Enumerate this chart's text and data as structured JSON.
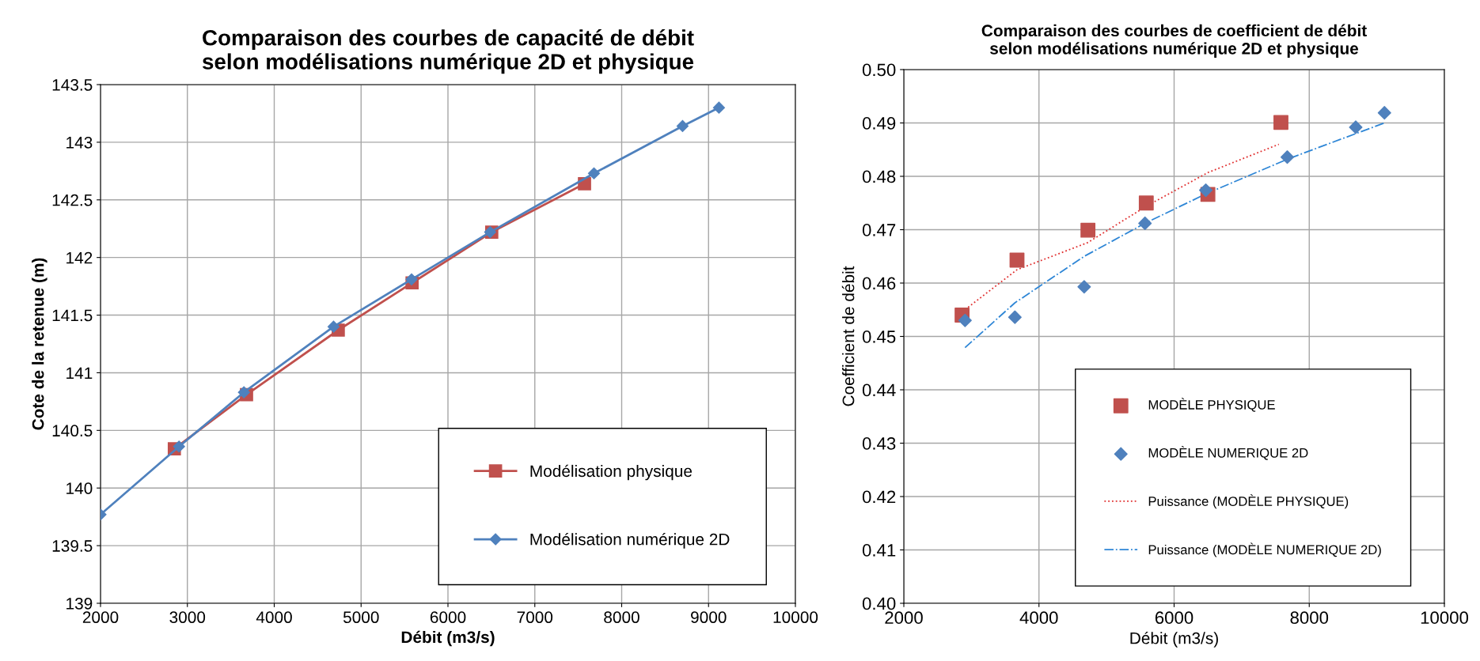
{
  "chart_data": [
    {
      "type": "line",
      "title": "Comparaison des courbes de capacité de débit\nselon modélisations numérique 2D et physique",
      "xlabel": "Débit (m3/s)",
      "ylabel": "Cote de la retenue (m)",
      "xlim": [
        2000,
        10000
      ],
      "xticks": [
        2000,
        3000,
        4000,
        5000,
        6000,
        7000,
        8000,
        9000,
        10000
      ],
      "ylim": [
        139,
        143.5
      ],
      "yticks": [
        139,
        139.5,
        140,
        140.5,
        141,
        141.5,
        142,
        142.5,
        143,
        143.5
      ],
      "grid": true,
      "legend": "bottom right",
      "series": [
        {
          "name": "Modélisation physique",
          "color": "#c0504d",
          "marker": "square",
          "x": [
            2850,
            3681,
            4737,
            5587,
            6504,
            7572
          ],
          "values": [
            140.34,
            140.81,
            141.37,
            141.78,
            142.22,
            142.64
          ]
        },
        {
          "name": "Modélisation numérique 2D",
          "color": "#4f81bd",
          "marker": "diamond",
          "x": [
            2000,
            2904,
            3651,
            4683,
            5581,
            6486,
            7681,
            8701,
            9120
          ],
          "values": [
            139.77,
            140.36,
            140.83,
            141.4,
            141.81,
            142.22,
            142.73,
            143.14,
            143.3
          ]
        }
      ]
    },
    {
      "type": "scatter",
      "title": "Comparaison des courbes de coefficient de débit\nselon modélisations numérique 2D et physique",
      "xlabel": "Débit (m3/s)",
      "ylabel": "Coefficient de débit",
      "xlim": [
        2000,
        10000
      ],
      "xticks": [
        2000,
        4000,
        6000,
        8000,
        10000
      ],
      "ylim": [
        0.4,
        0.5
      ],
      "yticks": [
        {
          "value": 0.4,
          "label": "0.40"
        },
        0.41,
        0.42,
        0.43,
        0.44,
        0.45,
        0.46,
        0.47,
        0.48,
        0.49,
        {
          "value": 0.5,
          "label": "0.50"
        }
      ],
      "grid": true,
      "legend": "bottom right",
      "series": [
        {
          "name": "MODÈLE PHYSIQUE",
          "color": "#c0504d",
          "marker": "square",
          "x": [
            2862,
            3675,
            4725,
            5588,
            6500,
            7581
          ],
          "values": [
            0.454,
            0.4643,
            0.4699,
            0.475,
            0.4766,
            0.4901
          ]
        },
        {
          "name": "MODÈLE NUMERIQUE 2D",
          "color": "#4f81bd",
          "marker": "diamond",
          "x": [
            2906,
            3644,
            4669,
            5569,
            6469,
            7675,
            8688,
            9113
          ],
          "values": [
            0.453,
            0.4536,
            0.4593,
            0.4712,
            0.4774,
            0.4836,
            0.4892,
            0.4919
          ]
        },
        {
          "name": "Puissance (MODÈLE PHYSIQUE)",
          "type": "line",
          "color": "#e03030",
          "line_style": "dotted",
          "x": [
            2862,
            3675,
            4725,
            5588,
            6500,
            7550
          ],
          "values": [
            0.4546,
            0.4625,
            0.4676,
            0.4744,
            0.4807,
            0.486
          ]
        },
        {
          "name": "Puissance (MODÈLE NUMERIQUE 2D)",
          "type": "line",
          "color": "#2e86d6",
          "line_style": "dashdot",
          "x": [
            2906,
            3644,
            4669,
            5569,
            6469,
            7675,
            8688,
            9113
          ],
          "values": [
            0.4479,
            0.4563,
            0.465,
            0.4712,
            0.4767,
            0.4832,
            0.488,
            0.49
          ]
        }
      ]
    }
  ]
}
